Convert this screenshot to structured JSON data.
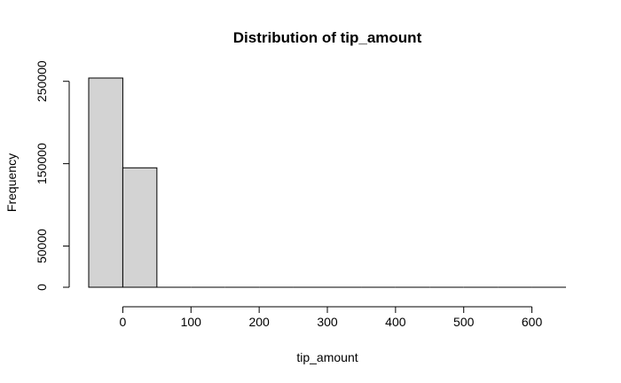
{
  "chart_data": {
    "type": "histogram",
    "title": "Distribution of tip_amount",
    "xlabel": "tip_amount",
    "ylabel": "Frequency",
    "bins": [
      {
        "start": -50,
        "end": 0,
        "count": 254000
      },
      {
        "start": 0,
        "end": 50,
        "count": 145000
      },
      {
        "start": 50,
        "end": 100,
        "count": 0
      },
      {
        "start": 100,
        "end": 150,
        "count": 0
      },
      {
        "start": 150,
        "end": 200,
        "count": 0
      },
      {
        "start": 200,
        "end": 250,
        "count": 0
      },
      {
        "start": 250,
        "end": 300,
        "count": 0
      },
      {
        "start": 300,
        "end": 350,
        "count": 0
      },
      {
        "start": 350,
        "end": 400,
        "count": 0
      },
      {
        "start": 400,
        "end": 450,
        "count": 0
      },
      {
        "start": 450,
        "end": 500,
        "count": 0
      },
      {
        "start": 500,
        "end": 550,
        "count": 0
      },
      {
        "start": 550,
        "end": 600,
        "count": 0
      },
      {
        "start": 600,
        "end": 650,
        "count": 0
      }
    ],
    "xlim": [
      -50,
      650
    ],
    "ylim": [
      0,
      254000
    ],
    "x_ticks": [
      0,
      100,
      200,
      300,
      400,
      500,
      600
    ],
    "x_tick_labels": [
      "0",
      "100",
      "200",
      "300",
      "400",
      "500",
      "600"
    ],
    "y_ticks": [
      0,
      50000,
      150000,
      250000
    ],
    "y_tick_labels": [
      "0",
      "50000",
      "150000",
      "250000"
    ],
    "grid": false,
    "bar_fill": "#d3d3d3",
    "bar_stroke": "#000000"
  }
}
